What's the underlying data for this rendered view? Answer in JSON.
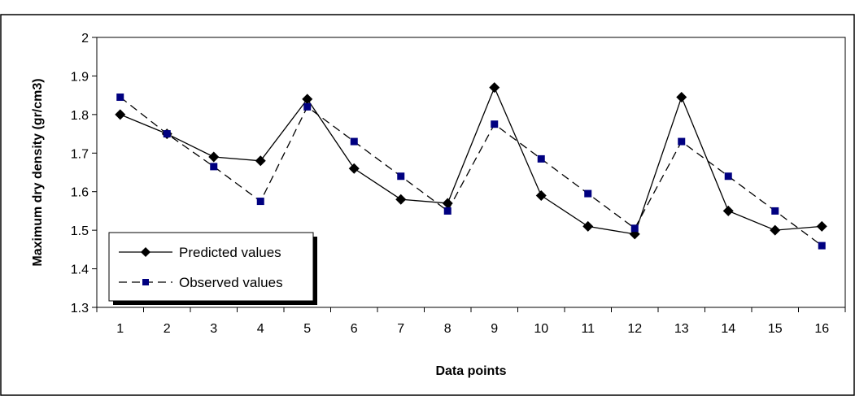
{
  "chart_data": {
    "type": "line",
    "title": "",
    "xlabel": "Data points",
    "ylabel": "Maximum dry density (gr/cm3)",
    "categories": [
      "1",
      "2",
      "3",
      "4",
      "5",
      "6",
      "7",
      "8",
      "9",
      "10",
      "11",
      "12",
      "13",
      "14",
      "15",
      "16"
    ],
    "ylim": [
      1.3,
      2.0
    ],
    "yticks": [
      "1.3",
      "1.4",
      "1.5",
      "1.6",
      "1.7",
      "1.8",
      "1.9",
      "2"
    ],
    "grid": false,
    "legend_position": "bottom-left",
    "series": [
      {
        "name": "Predicted values",
        "line_style": "solid",
        "marker": "diamond",
        "color": "#000000",
        "values": [
          1.8,
          1.75,
          1.69,
          1.68,
          1.84,
          1.66,
          1.58,
          1.57,
          1.87,
          1.59,
          1.51,
          1.49,
          1.845,
          1.55,
          1.5,
          1.51
        ]
      },
      {
        "name": "Observed values",
        "line_style": "dashed",
        "marker": "square",
        "color": "#000000",
        "marker_color": "#000080",
        "values": [
          1.845,
          1.75,
          1.665,
          1.575,
          1.82,
          1.73,
          1.64,
          1.55,
          1.775,
          1.685,
          1.595,
          1.505,
          1.73,
          1.64,
          1.55,
          1.46
        ]
      }
    ]
  }
}
